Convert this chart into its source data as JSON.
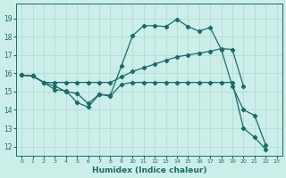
{
  "xlabel": "Humidex (Indice chaleur)",
  "bg_color": "#cceee8",
  "grid_color": "#b8ddd8",
  "line_color": "#1a6b6b",
  "xlim": [
    -0.5,
    23.5
  ],
  "ylim": [
    11.5,
    19.8
  ],
  "yticks": [
    12,
    13,
    14,
    15,
    16,
    17,
    18,
    19
  ],
  "xticks": [
    0,
    1,
    2,
    3,
    4,
    5,
    6,
    7,
    8,
    9,
    10,
    11,
    12,
    13,
    14,
    15,
    16,
    17,
    18,
    19,
    20,
    21,
    22,
    23
  ],
  "line1_x": [
    0,
    1,
    2,
    3,
    4,
    5,
    6,
    7,
    8,
    9,
    10,
    11,
    12,
    13,
    14,
    15,
    16,
    17,
    18,
    19,
    20,
    21,
    22
  ],
  "line1_y": [
    15.9,
    15.85,
    15.5,
    15.1,
    15.05,
    14.4,
    14.15,
    14.85,
    14.8,
    16.4,
    18.05,
    18.6,
    18.6,
    18.55,
    18.95,
    18.55,
    18.3,
    18.5,
    17.3,
    15.3,
    14.0,
    13.7,
    12.1
  ],
  "line2_x": [
    0,
    1,
    2,
    3,
    4,
    5,
    6,
    7,
    8,
    9,
    10,
    11,
    12,
    13,
    14,
    15,
    16,
    17,
    18,
    19,
    20
  ],
  "line2_y": [
    15.9,
    15.85,
    15.5,
    15.5,
    15.5,
    15.5,
    15.5,
    15.5,
    15.5,
    15.8,
    16.1,
    16.3,
    16.5,
    16.7,
    16.9,
    17.0,
    17.1,
    17.2,
    17.35,
    17.3,
    15.3
  ],
  "line3_x": [
    0,
    1,
    2,
    3,
    4,
    5,
    6,
    7,
    8,
    9,
    10,
    11,
    12,
    13,
    14,
    15,
    16,
    17,
    18,
    19,
    20,
    21,
    22
  ],
  "line3_y": [
    15.9,
    15.85,
    15.5,
    15.3,
    15.0,
    14.9,
    14.35,
    14.85,
    14.75,
    15.4,
    15.5,
    15.5,
    15.5,
    15.5,
    15.5,
    15.5,
    15.5,
    15.5,
    15.5,
    15.5,
    13.0,
    12.5,
    11.85
  ]
}
